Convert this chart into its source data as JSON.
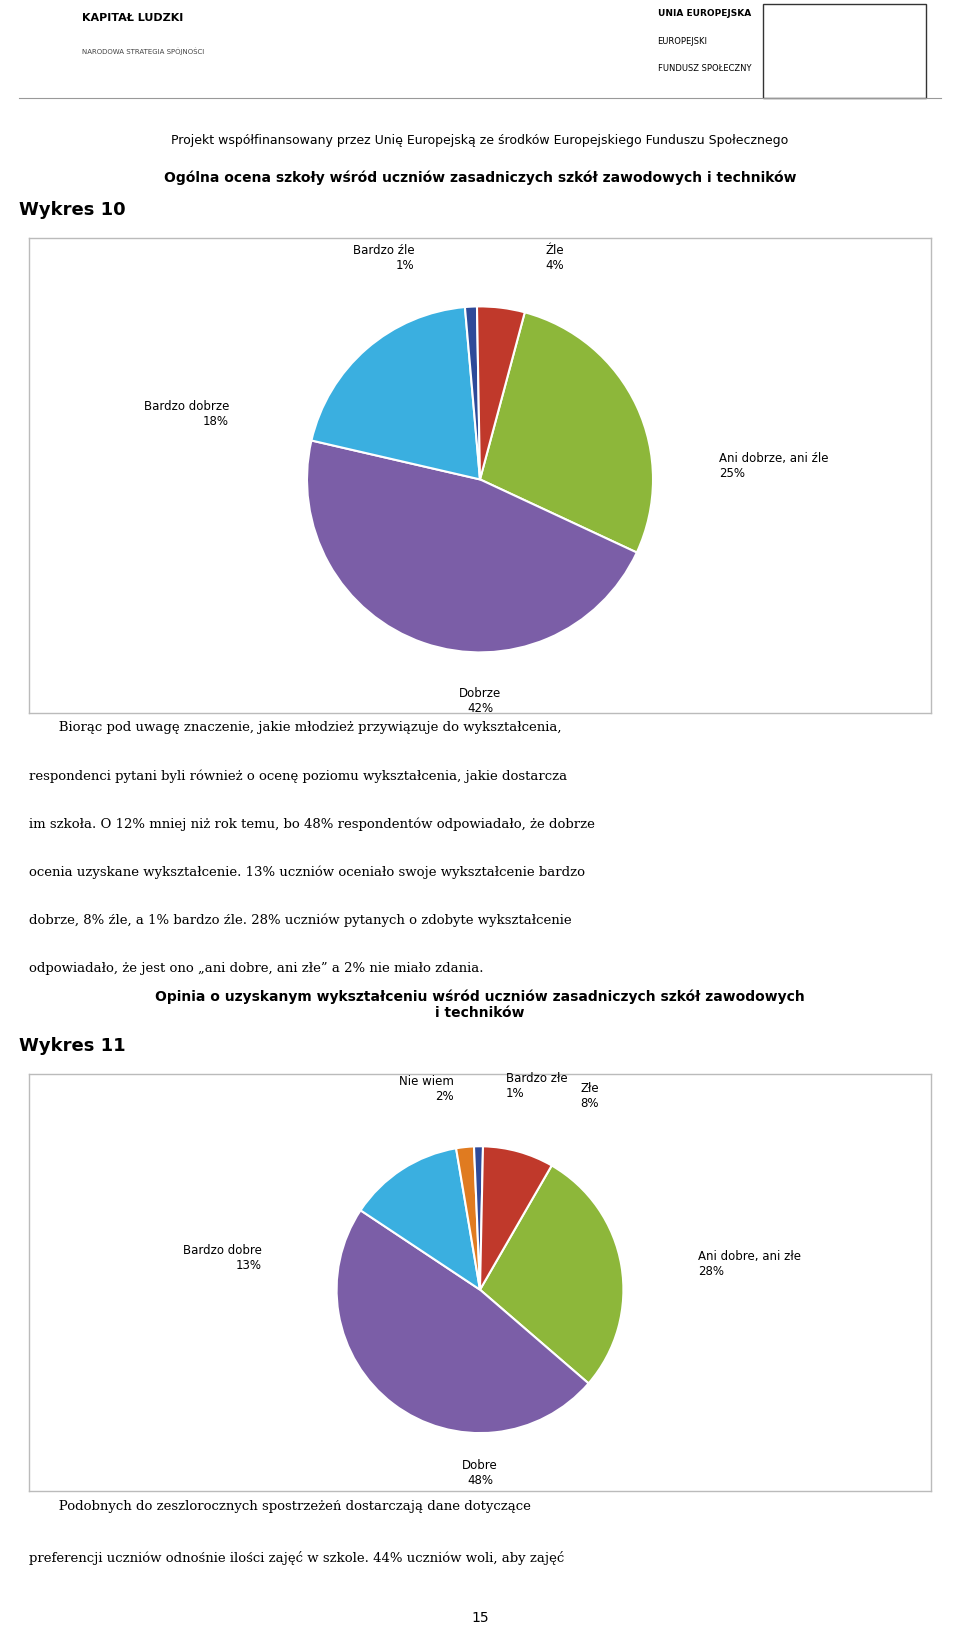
{
  "header_text": "Projekt współfinansowany przez Unię Europejską ze środków Europejskiego Funduszu Społecznego",
  "wykres10_label": "Wykres 10",
  "wykres11_label": "Wykres 11",
  "chart1": {
    "title": "Ogólna ocena szkoły wśród uczniów zasadniczych szkół zawodowych i techników",
    "labels": [
      "Ani dobrze, ani źle",
      "Dobrze",
      "Bardzo dobrze",
      "Bardzo źle",
      "Źle"
    ],
    "values": [
      25,
      42,
      18,
      1,
      4
    ],
    "colors": [
      "#8DB73A",
      "#7B5EA7",
      "#3AAFE0",
      "#2E4A99",
      "#C0392B"
    ],
    "startangle": 75
  },
  "chart2": {
    "title": "Opinia o uzyskanym wykształceniu wśród uczniów zasadniczych szkół zawodowych\ni techników",
    "labels": [
      "Ani dobre, ani złe",
      "Dobre",
      "Bardzo dobre",
      "Nie wiem",
      "Bardzo złe",
      "Złe"
    ],
    "values": [
      28,
      48,
      13,
      2,
      1,
      8
    ],
    "colors": [
      "#8DB73A",
      "#7B5EA7",
      "#3AAFE0",
      "#E07B20",
      "#2E4A99",
      "#C0392B"
    ],
    "startangle": 60
  },
  "body_lines": [
    "       Biorąc pod uwagę znaczenie, jakie młodzież przywiązuje do wykształcenia,",
    "respondenci pytani byli również o ocenę poziomu wykształcenia, jakie dostarcza",
    "im szkoła. O 12% mniej niż rok temu, bo 48% respondentów odpowiadało, że dobrze",
    "ocenia uzyskane wykształcenie. 13% uczniów oceniało swoje wykształcenie bardzo",
    "dobrze, 8% źle, a 1% bardzo źle. 28% uczniów pytanych o zdobyte wykształcenie",
    "odpowiadało, że jest ono „ani dobre, ani złe” a 2% nie miało zdania."
  ],
  "footer_lines": [
    "       Podobnych do zeszlorocznych spostrzeżeń dostarczają dane dotyczące",
    "preferencji uczniów odnośnie ilości zajęć w szkole. 44% uczniów woli, aby zajęć"
  ],
  "page_number": "15",
  "background_color": "#FFFFFF",
  "chart_bg": "#FFFFFF",
  "chart_border": "#BBBBBB"
}
